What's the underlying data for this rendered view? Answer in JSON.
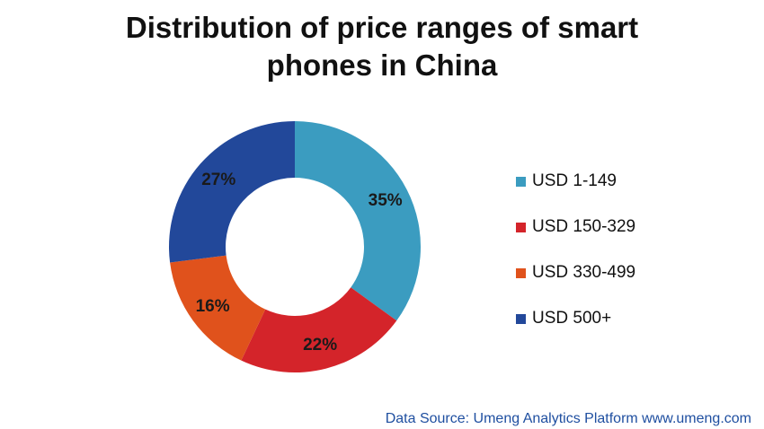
{
  "chart_data": {
    "type": "pie",
    "title": "Distribution of price ranges of smart phones in China",
    "title_lines": [
      "Distribution of price ranges of smart",
      "phones in China"
    ],
    "donut": true,
    "categories": [
      "USD 1-149",
      "USD 150-329",
      "USD 330-499",
      "USD 500+"
    ],
    "values": [
      35,
      22,
      16,
      27
    ],
    "value_labels": [
      "35%",
      "22%",
      "16%",
      "27%"
    ],
    "colors": [
      "#3b9cc0",
      "#d4242a",
      "#e0521c",
      "#22489a"
    ],
    "legend_position": "right"
  },
  "source": "Data Source: Umeng Analytics Platform www.umeng.com"
}
